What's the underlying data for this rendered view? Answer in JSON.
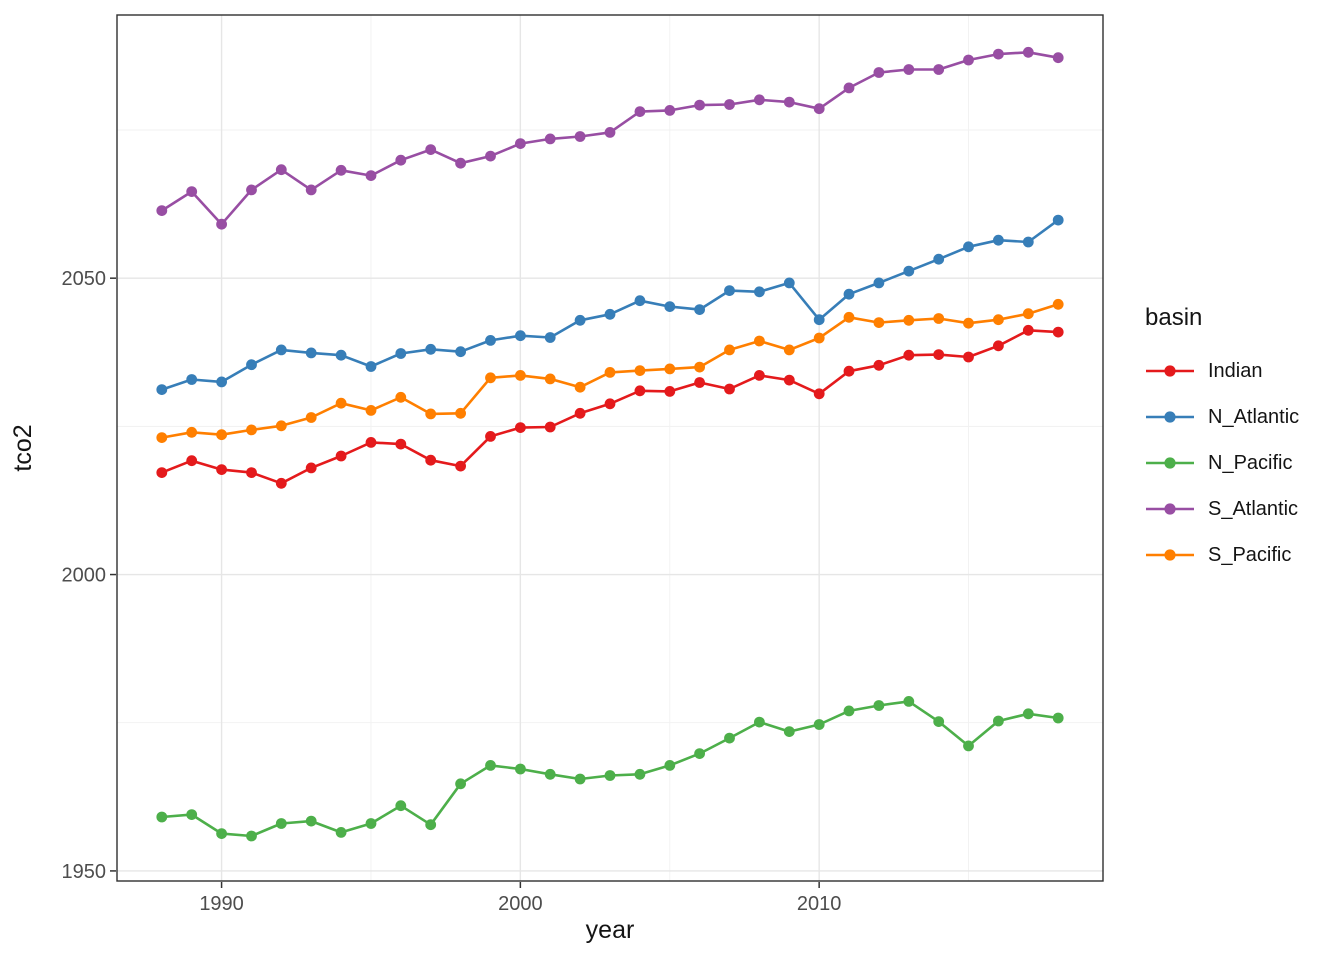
{
  "chart_data": {
    "type": "line",
    "title": "",
    "xlabel": "year",
    "ylabel": "tco2",
    "legend_title": "basin",
    "legend_position": "right",
    "grid": true,
    "x_ticks": [
      1990,
      2000,
      2010
    ],
    "x_minor_ticks": [
      1995,
      2005,
      2015
    ],
    "y_ticks": [
      1950,
      2000,
      2050
    ],
    "y_minor_ticks": [
      1975,
      2025,
      2075
    ],
    "xlim": [
      1986.5,
      2019.5
    ],
    "ylim": [
      1948.3,
      2094.4
    ],
    "background_color": "#ffffff",
    "grid_major_color": "#e6e6e6",
    "grid_minor_color": "#f1f1f1",
    "panel_border_color": "#2f2f2f",
    "tick_label_color": "#4d4d4d",
    "x": [
      1988,
      1989,
      1990,
      1991,
      1992,
      1993,
      1994,
      1995,
      1996,
      1997,
      1998,
      1999,
      2000,
      2001,
      2002,
      2003,
      2004,
      2005,
      2006,
      2007,
      2008,
      2009,
      2010,
      2011,
      2012,
      2013,
      2014,
      2015,
      2016,
      2017,
      2018
    ],
    "series": [
      {
        "name": "Indian",
        "color": "#e41a1c",
        "values": [
          2017.2,
          2019.2,
          2017.7,
          2017.2,
          2015.4,
          2018.0,
          2020.0,
          2022.3,
          2022.0,
          2019.3,
          2018.3,
          2023.3,
          2024.8,
          2024.9,
          2027.2,
          2028.8,
          2031.0,
          2030.9,
          2032.4,
          2031.3,
          2033.6,
          2032.8,
          2030.5,
          2034.3,
          2035.3,
          2037.0,
          2037.1,
          2036.7,
          2038.6,
          2041.2,
          2040.9
        ]
      },
      {
        "name": "N_Atlantic",
        "color": "#377eb8",
        "values": [
          2031.2,
          2032.9,
          2032.5,
          2035.4,
          2037.9,
          2037.4,
          2037.0,
          2035.1,
          2037.3,
          2038.0,
          2037.6,
          2039.5,
          2040.3,
          2040.0,
          2042.9,
          2043.9,
          2046.2,
          2045.2,
          2044.7,
          2047.9,
          2047.7,
          2049.2,
          2043.0,
          2047.3,
          2049.2,
          2051.2,
          2053.2,
          2055.3,
          2056.4,
          2056.1,
          2059.8
        ]
      },
      {
        "name": "N_Pacific",
        "color": "#4daf4a",
        "values": [
          1959.1,
          1959.5,
          1956.3,
          1955.9,
          1958.0,
          1958.4,
          1956.5,
          1958.0,
          1961.0,
          1957.8,
          1964.7,
          1967.8,
          1967.2,
          1966.3,
          1965.5,
          1966.1,
          1966.3,
          1967.8,
          1969.8,
          1972.4,
          1975.1,
          1973.5,
          1974.7,
          1977.0,
          1977.9,
          1978.6,
          1975.2,
          1971.1,
          1975.3,
          1976.5,
          1975.8
        ]
      },
      {
        "name": "S_Atlantic",
        "color": "#984ea3",
        "values": [
          2061.4,
          2064.6,
          2059.1,
          2064.9,
          2068.3,
          2064.9,
          2068.2,
          2067.3,
          2069.9,
          2071.7,
          2069.4,
          2070.6,
          2072.7,
          2073.5,
          2073.9,
          2074.6,
          2078.1,
          2078.3,
          2079.2,
          2079.3,
          2080.1,
          2079.7,
          2078.6,
          2082.1,
          2084.7,
          2085.2,
          2085.2,
          2086.8,
          2087.8,
          2088.1,
          2087.2
        ]
      },
      {
        "name": "S_Pacific",
        "color": "#ff7f00",
        "values": [
          2023.1,
          2024.0,
          2023.6,
          2024.4,
          2025.1,
          2026.5,
          2028.9,
          2027.7,
          2029.9,
          2027.1,
          2027.2,
          2033.2,
          2033.6,
          2033.0,
          2031.6,
          2034.1,
          2034.4,
          2034.7,
          2035.0,
          2037.9,
          2039.4,
          2037.9,
          2039.9,
          2043.4,
          2042.5,
          2042.9,
          2043.2,
          2042.4,
          2043.0,
          2044.0,
          2045.6
        ]
      }
    ]
  }
}
